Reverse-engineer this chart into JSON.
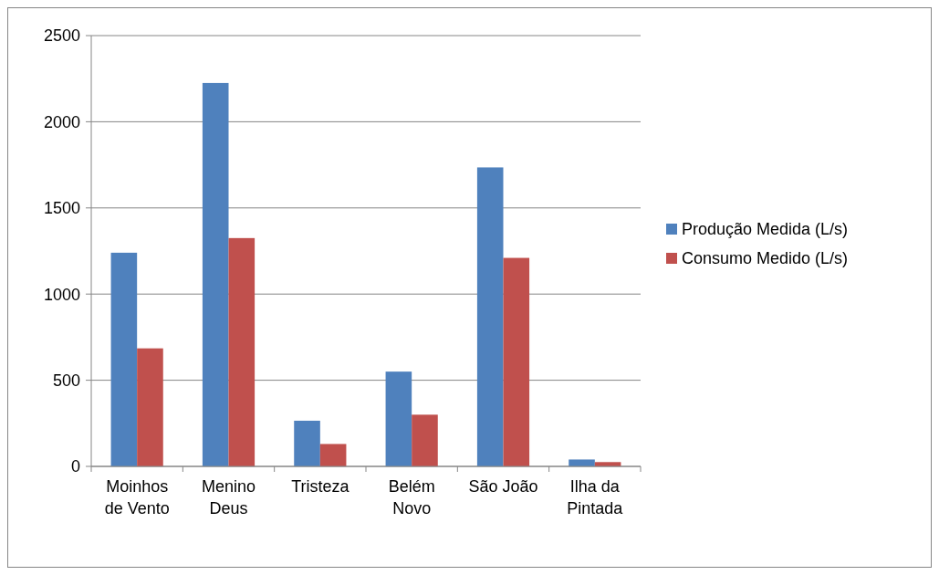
{
  "chart_data": {
    "type": "bar",
    "categories": [
      "Moinhos de Vento",
      "Menino Deus",
      "Tristeza",
      "Belém Novo",
      "São João",
      "Ilha da Pintada"
    ],
    "series": [
      {
        "name": "Produção Medida (L/s)",
        "color": "#4f81bd",
        "values": [
          1240,
          2225,
          265,
          550,
          1735,
          40
        ]
      },
      {
        "name": "Consumo Medido (L/s)",
        "color": "#c0504d",
        "values": [
          685,
          1325,
          130,
          300,
          1210,
          25
        ]
      }
    ],
    "ylim": [
      0,
      2500
    ],
    "yticks": [
      0,
      500,
      1000,
      1500,
      2000,
      2500
    ],
    "grid": "y",
    "legend": "right"
  }
}
